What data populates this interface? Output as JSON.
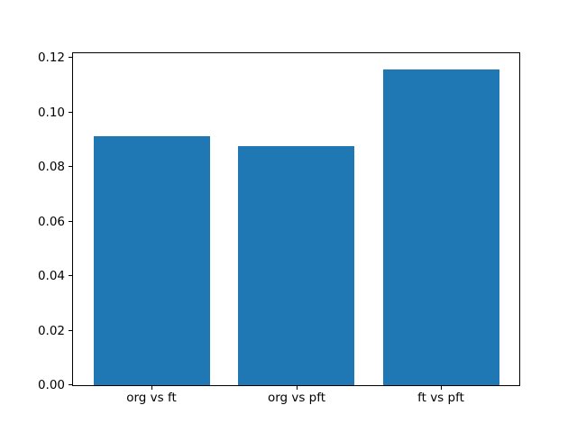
{
  "figure": {
    "background": "#ffffff"
  },
  "chart_data": {
    "type": "bar",
    "title": "",
    "xlabel": "",
    "ylabel": "",
    "categories": [
      "org vs ft",
      "org vs pft",
      "ft vs pft"
    ],
    "values": [
      0.0914,
      0.0877,
      0.116
    ],
    "bar_color": "#1f77b4",
    "axis_color": "#000000",
    "tick_label_color": "#000000",
    "bar_width": 0.8,
    "xlim": [
      -0.54,
      2.54
    ],
    "ylim": [
      0,
      0.1218
    ],
    "yticks": [
      0,
      0.02,
      0.04,
      0.06,
      0.08,
      0.1,
      0.12
    ],
    "ytick_labels": [
      "0.00",
      "0.02",
      "0.04",
      "0.06",
      "0.08",
      "0.10",
      "0.12"
    ],
    "grid": false,
    "legend": null
  }
}
